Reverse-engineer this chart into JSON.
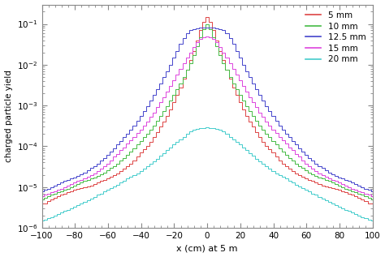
{
  "title": "",
  "xlabel": "x (cm) at 5 m",
  "ylabel": "charged particle yield",
  "xlim": [
    -100,
    100
  ],
  "ylim": [
    1e-06,
    0.3
  ],
  "legend_labels": [
    "5 mm",
    "10 mm",
    "12.5 mm",
    "15 mm",
    "20 mm"
  ],
  "colors": [
    "#dd4444",
    "#44bb44",
    "#4444cc",
    "#dd44dd",
    "#44cccc"
  ],
  "bin_width": 2,
  "series": {
    "5mm": {
      "x": [
        -100,
        -98,
        -96,
        -94,
        -92,
        -90,
        -88,
        -86,
        -84,
        -82,
        -80,
        -78,
        -76,
        -74,
        -72,
        -70,
        -68,
        -66,
        -64,
        -62,
        -60,
        -58,
        -56,
        -54,
        -52,
        -50,
        -48,
        -46,
        -44,
        -42,
        -40,
        -38,
        -36,
        -34,
        -32,
        -30,
        -28,
        -26,
        -24,
        -22,
        -20,
        -18,
        -16,
        -14,
        -12,
        -10,
        -8,
        -6,
        -4,
        -2,
        0,
        2,
        4,
        6,
        8,
        10,
        12,
        14,
        16,
        18,
        20,
        22,
        24,
        26,
        28,
        30,
        32,
        34,
        36,
        38,
        40,
        42,
        44,
        46,
        48,
        50,
        52,
        54,
        56,
        58,
        60,
        62,
        64,
        66,
        68,
        70,
        72,
        74,
        76,
        78,
        80,
        82,
        84,
        86,
        88,
        90,
        92,
        94,
        96,
        98,
        100
      ],
      "y": [
        4e-06,
        4e-06,
        4.5e-06,
        5e-06,
        5.5e-06,
        6e-06,
        6.5e-06,
        7e-06,
        7.5e-06,
        8e-06,
        8.5e-06,
        9e-06,
        9.5e-06,
        1e-05,
        1.05e-05,
        1.1e-05,
        1.2e-05,
        1.3e-05,
        1.4e-05,
        1.5e-05,
        1.6e-05,
        1.8e-05,
        2e-05,
        2.2e-05,
        2.5e-05,
        2.8e-05,
        3.2e-05,
        3.8e-05,
        4.5e-05,
        5.5e-05,
        7e-05,
        8.5e-05,
        0.0001,
        0.00013,
        0.00017,
        0.00022,
        0.0003,
        0.0004,
        0.00055,
        0.0008,
        0.0012,
        0.0018,
        0.0028,
        0.0045,
        0.0075,
        0.013,
        0.022,
        0.04,
        0.07,
        0.11,
        0.15,
        0.11,
        0.07,
        0.04,
        0.022,
        0.013,
        0.0075,
        0.0045,
        0.0028,
        0.0018,
        0.0012,
        0.0008,
        0.00055,
        0.0004,
        0.0003,
        0.00022,
        0.00017,
        0.00013,
        0.0001,
        8.5e-05,
        7e-05,
        5.5e-05,
        4.5e-05,
        3.8e-05,
        3.2e-05,
        2.8e-05,
        2.5e-05,
        2.2e-05,
        2e-05,
        1.8e-05,
        1.6e-05,
        1.5e-05,
        1.4e-05,
        1.3e-05,
        1.2e-05,
        1.1e-05,
        1.05e-05,
        1e-05,
        9.5e-06,
        9e-06,
        8.5e-06,
        8e-06,
        7.5e-06,
        7e-06,
        6.5e-06,
        6e-06,
        5.5e-06,
        5e-06,
        4.5e-06,
        4e-06,
        4e-06
      ]
    },
    "10mm": {
      "x": [
        -100,
        -98,
        -96,
        -94,
        -92,
        -90,
        -88,
        -86,
        -84,
        -82,
        -80,
        -78,
        -76,
        -74,
        -72,
        -70,
        -68,
        -66,
        -64,
        -62,
        -60,
        -58,
        -56,
        -54,
        -52,
        -50,
        -48,
        -46,
        -44,
        -42,
        -40,
        -38,
        -36,
        -34,
        -32,
        -30,
        -28,
        -26,
        -24,
        -22,
        -20,
        -18,
        -16,
        -14,
        -12,
        -10,
        -8,
        -6,
        -4,
        -2,
        0,
        2,
        4,
        6,
        8,
        10,
        12,
        14,
        16,
        18,
        20,
        22,
        24,
        26,
        28,
        30,
        32,
        34,
        36,
        38,
        40,
        42,
        44,
        46,
        48,
        50,
        52,
        54,
        56,
        58,
        60,
        62,
        64,
        66,
        68,
        70,
        72,
        74,
        76,
        78,
        80,
        82,
        84,
        86,
        88,
        90,
        92,
        94,
        96,
        98,
        100
      ],
      "y": [
        5e-06,
        5.5e-06,
        6e-06,
        6.5e-06,
        7e-06,
        7.5e-06,
        8e-06,
        8.5e-06,
        9e-06,
        1e-05,
        1.1e-05,
        1.2e-05,
        1.3e-05,
        1.4e-05,
        1.5e-05,
        1.6e-05,
        1.75e-05,
        1.9e-05,
        2.1e-05,
        2.3e-05,
        2.6e-05,
        2.9e-05,
        3.3e-05,
        3.8e-05,
        4.4e-05,
        5.2e-05,
        6.2e-05,
        7.5e-05,
        9e-05,
        0.00011,
        0.000135,
        0.000165,
        0.0002,
        0.00025,
        0.00032,
        0.00042,
        0.00055,
        0.00072,
        0.00095,
        0.0013,
        0.0018,
        0.0025,
        0.0035,
        0.005,
        0.0075,
        0.011,
        0.017,
        0.028,
        0.048,
        0.075,
        0.1,
        0.075,
        0.048,
        0.028,
        0.017,
        0.011,
        0.0075,
        0.005,
        0.0035,
        0.0025,
        0.0018,
        0.0013,
        0.00095,
        0.00072,
        0.00055,
        0.00042,
        0.00032,
        0.00025,
        0.0002,
        0.000165,
        0.000135,
        0.00011,
        9e-05,
        7.5e-05,
        6.2e-05,
        5.2e-05,
        4.4e-05,
        3.8e-05,
        3.3e-05,
        2.9e-05,
        2.6e-05,
        2.3e-05,
        2.1e-05,
        1.9e-05,
        1.75e-05,
        1.6e-05,
        1.5e-05,
        1.4e-05,
        1.3e-05,
        1.2e-05,
        1.1e-05,
        1e-05,
        9e-06,
        8.5e-06,
        8e-06,
        7.5e-06,
        7e-06,
        6.5e-06,
        6e-06,
        5.5e-06,
        5e-06
      ]
    },
    "12.5mm": {
      "x": [
        -100,
        -98,
        -96,
        -94,
        -92,
        -90,
        -88,
        -86,
        -84,
        -82,
        -80,
        -78,
        -76,
        -74,
        -72,
        -70,
        -68,
        -66,
        -64,
        -62,
        -60,
        -58,
        -56,
        -54,
        -52,
        -50,
        -48,
        -46,
        -44,
        -42,
        -40,
        -38,
        -36,
        -34,
        -32,
        -30,
        -28,
        -26,
        -24,
        -22,
        -20,
        -18,
        -16,
        -14,
        -12,
        -10,
        -8,
        -6,
        -4,
        -2,
        0,
        2,
        4,
        6,
        8,
        10,
        12,
        14,
        16,
        18,
        20,
        22,
        24,
        26,
        28,
        30,
        32,
        34,
        36,
        38,
        40,
        42,
        44,
        46,
        48,
        50,
        52,
        54,
        56,
        58,
        60,
        62,
        64,
        66,
        68,
        70,
        72,
        74,
        76,
        78,
        80,
        82,
        84,
        86,
        88,
        90,
        92,
        94,
        96,
        98,
        100
      ],
      "y": [
        8e-06,
        8.5e-06,
        9e-06,
        1e-05,
        1.1e-05,
        1.2e-05,
        1.3e-05,
        1.4e-05,
        1.5e-05,
        1.6e-05,
        1.75e-05,
        1.9e-05,
        2.1e-05,
        2.3e-05,
        2.6e-05,
        2.9e-05,
        3.3e-05,
        3.8e-05,
        4.4e-05,
        5.2e-05,
        6.2e-05,
        7.5e-05,
        9e-05,
        0.00011,
        0.000135,
        0.000165,
        0.0002,
        0.00025,
        0.00032,
        0.00042,
        0.00055,
        0.00072,
        0.00095,
        0.0013,
        0.0018,
        0.0025,
        0.0035,
        0.005,
        0.007,
        0.01,
        0.015,
        0.022,
        0.032,
        0.045,
        0.06,
        0.07,
        0.075,
        0.078,
        0.08,
        0.08,
        0.08,
        0.08,
        0.08,
        0.078,
        0.075,
        0.07,
        0.06,
        0.045,
        0.032,
        0.022,
        0.015,
        0.01,
        0.007,
        0.005,
        0.0035,
        0.0025,
        0.0018,
        0.0013,
        0.00095,
        0.00072,
        0.00055,
        0.00042,
        0.00032,
        0.00025,
        0.0002,
        0.000165,
        0.000135,
        0.00011,
        9e-05,
        7.5e-05,
        6.2e-05,
        5.2e-05,
        4.4e-05,
        3.8e-05,
        3.3e-05,
        2.9e-05,
        2.6e-05,
        2.3e-05,
        2.1e-05,
        1.9e-05,
        1.75e-05,
        1.6e-05,
        1.5e-05,
        1.4e-05,
        1.3e-05,
        1.2e-05,
        1.1e-05,
        1e-05,
        9e-06,
        8.5e-06,
        8e-06
      ]
    },
    "15mm": {
      "x": [
        -100,
        -98,
        -96,
        -94,
        -92,
        -90,
        -88,
        -86,
        -84,
        -82,
        -80,
        -78,
        -76,
        -74,
        -72,
        -70,
        -68,
        -66,
        -64,
        -62,
        -60,
        -58,
        -56,
        -54,
        -52,
        -50,
        -48,
        -46,
        -44,
        -42,
        -40,
        -38,
        -36,
        -34,
        -32,
        -30,
        -28,
        -26,
        -24,
        -22,
        -20,
        -18,
        -16,
        -14,
        -12,
        -10,
        -8,
        -6,
        -4,
        -2,
        0,
        2,
        4,
        6,
        8,
        10,
        12,
        14,
        16,
        18,
        20,
        22,
        24,
        26,
        28,
        30,
        32,
        34,
        36,
        38,
        40,
        42,
        44,
        46,
        48,
        50,
        52,
        54,
        56,
        58,
        60,
        62,
        64,
        66,
        68,
        70,
        72,
        74,
        76,
        78,
        80,
        82,
        84,
        86,
        88,
        90,
        92,
        94,
        96,
        98,
        100
      ],
      "y": [
        6e-06,
        6.5e-06,
        7e-06,
        7.5e-06,
        8e-06,
        8.5e-06,
        9e-06,
        1e-05,
        1.1e-05,
        1.2e-05,
        1.3e-05,
        1.4e-05,
        1.5e-05,
        1.65e-05,
        1.8e-05,
        2e-05,
        2.2e-05,
        2.5e-05,
        2.8e-05,
        3.2e-05,
        3.8e-05,
        4.5e-05,
        5.5e-05,
        6.5e-05,
        8e-05,
        9.5e-05,
        0.000115,
        0.00014,
        0.00017,
        0.00021,
        0.00026,
        0.00032,
        0.0004,
        0.00052,
        0.00068,
        0.0009,
        0.0012,
        0.0016,
        0.0022,
        0.003,
        0.0042,
        0.0058,
        0.008,
        0.011,
        0.015,
        0.02,
        0.027,
        0.035,
        0.043,
        0.048,
        0.05,
        0.048,
        0.043,
        0.035,
        0.027,
        0.02,
        0.015,
        0.011,
        0.008,
        0.0058,
        0.0042,
        0.003,
        0.0022,
        0.0016,
        0.0012,
        0.0009,
        0.00068,
        0.00052,
        0.0004,
        0.00032,
        0.00026,
        0.00021,
        0.00017,
        0.00014,
        0.000115,
        9.5e-05,
        8e-05,
        6.5e-05,
        5.5e-05,
        4.5e-05,
        3.8e-05,
        3.2e-05,
        2.8e-05,
        2.5e-05,
        2.2e-05,
        2e-05,
        1.8e-05,
        1.65e-05,
        1.5e-05,
        1.4e-05,
        1.3e-05,
        1.2e-05,
        1.1e-05,
        1e-05,
        9e-06,
        8.5e-06,
        8e-06,
        7.5e-06,
        7e-06,
        6.5e-06,
        6e-06
      ]
    },
    "20mm": {
      "x": [
        -100,
        -98,
        -96,
        -94,
        -92,
        -90,
        -88,
        -86,
        -84,
        -82,
        -80,
        -78,
        -76,
        -74,
        -72,
        -70,
        -68,
        -66,
        -64,
        -62,
        -60,
        -58,
        -56,
        -54,
        -52,
        -50,
        -48,
        -46,
        -44,
        -42,
        -40,
        -38,
        -36,
        -34,
        -32,
        -30,
        -28,
        -26,
        -24,
        -22,
        -20,
        -18,
        -16,
        -14,
        -12,
        -10,
        -8,
        -6,
        -4,
        -2,
        0,
        2,
        4,
        6,
        8,
        10,
        12,
        14,
        16,
        18,
        20,
        22,
        24,
        26,
        28,
        30,
        32,
        34,
        36,
        38,
        40,
        42,
        44,
        46,
        48,
        50,
        52,
        54,
        56,
        58,
        60,
        62,
        64,
        66,
        68,
        70,
        72,
        74,
        76,
        78,
        80,
        82,
        84,
        86,
        88,
        90,
        92,
        94,
        96,
        98,
        100
      ],
      "y": [
        1.5e-06,
        1.6e-06,
        1.7e-06,
        1.8e-06,
        2e-06,
        2.2e-06,
        2.4e-06,
        2.6e-06,
        2.8e-06,
        3e-06,
        3.3e-06,
        3.6e-06,
        4e-06,
        4.4e-06,
        4.8e-06,
        5.3e-06,
        5.8e-06,
        6.4e-06,
        7e-06,
        7.8e-06,
        8.6e-06,
        9.5e-06,
        1.05e-05,
        1.15e-05,
        1.3e-05,
        1.45e-05,
        1.6e-05,
        1.8e-05,
        2e-05,
        2.2e-05,
        2.5e-05,
        2.8e-05,
        3.2e-05,
        3.7e-05,
        4.3e-05,
        5e-05,
        5.8e-05,
        6.8e-05,
        8e-05,
        9.5e-05,
        0.00011,
        0.00013,
        0.00015,
        0.00017,
        0.0002,
        0.00023,
        0.00025,
        0.00027,
        0.00028,
        0.000285,
        0.00029,
        0.000285,
        0.00028,
        0.00027,
        0.00025,
        0.00023,
        0.0002,
        0.00017,
        0.00015,
        0.00013,
        0.00011,
        9.5e-05,
        8e-05,
        6.8e-05,
        5.8e-05,
        5e-05,
        4.3e-05,
        3.7e-05,
        3.2e-05,
        2.8e-05,
        2.5e-05,
        2.2e-05,
        2e-05,
        1.8e-05,
        1.6e-05,
        1.45e-05,
        1.3e-05,
        1.15e-05,
        1.05e-05,
        9.5e-06,
        8.6e-06,
        7.8e-06,
        7e-06,
        6.4e-06,
        5.8e-06,
        5.3e-06,
        4.8e-06,
        4.4e-06,
        4e-06,
        3.6e-06,
        3.3e-06,
        3e-06,
        2.8e-06,
        2.6e-06,
        2.4e-06,
        2.2e-06,
        2e-06,
        1.8e-06,
        1.7e-06,
        1.6e-06,
        1.5e-06
      ]
    }
  },
  "background_color": "#ffffff",
  "spine_color": "#888888",
  "tick_color": "#888888"
}
